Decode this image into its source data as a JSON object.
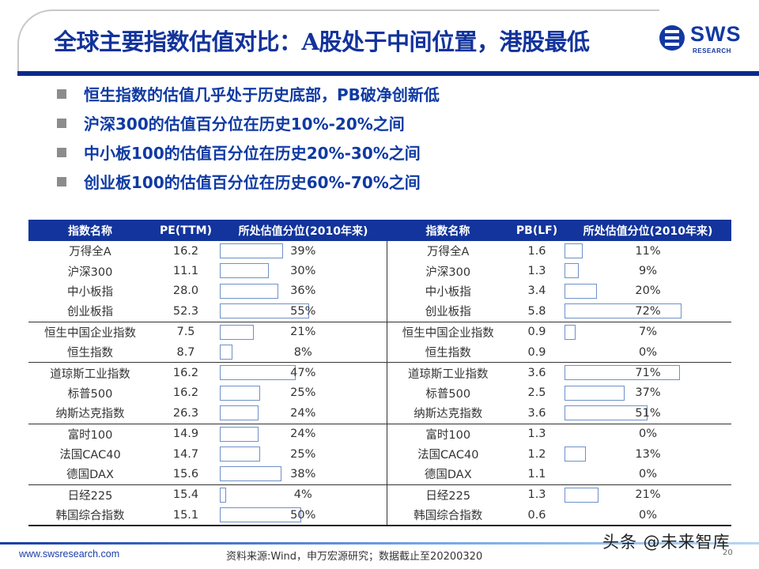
{
  "header": {
    "title": "全球主要指数估值对比：A股处于中间位置，港股最低",
    "logo_name": "SWS",
    "logo_sub": "RESEARCH"
  },
  "bullets": [
    "恒生指数的估值几乎处于历史底部，PB破净创新低",
    "沪深300的估值百分位在历史10%-20%之间",
    "中小板100的估值百分位在历史20%-30%之间",
    "创业板100的估值百分位在历史60%-70%之间"
  ],
  "table": {
    "headers": [
      "指数名称",
      "PE(TTM)",
      "所处估值分位(2010年来)",
      "指数名称",
      "PB(LF)",
      "所处估值分位(2010年来)"
    ],
    "rows": [
      {
        "name": "万得全A",
        "pe": "16.2",
        "pe_pct": "39%",
        "pe_frac": 0.39,
        "name2": "万得全A",
        "pb": "1.6",
        "pb_pct": "11%",
        "pb_frac": 0.11
      },
      {
        "name": "沪深300",
        "pe": "11.1",
        "pe_pct": "30%",
        "pe_frac": 0.3,
        "name2": "沪深300",
        "pb": "1.3",
        "pb_pct": "9%",
        "pb_frac": 0.09
      },
      {
        "name": "中小板指",
        "pe": "28.0",
        "pe_pct": "36%",
        "pe_frac": 0.36,
        "name2": "中小板指",
        "pb": "3.4",
        "pb_pct": "20%",
        "pb_frac": 0.2
      },
      {
        "name": "创业板指",
        "pe": "52.3",
        "pe_pct": "55%",
        "pe_frac": 0.55,
        "name2": "创业板指",
        "pb": "5.8",
        "pb_pct": "72%",
        "pb_frac": 0.72
      },
      {
        "name": "恒生中国企业指数",
        "pe": "7.5",
        "pe_pct": "21%",
        "pe_frac": 0.21,
        "name2": "恒生中国企业指数",
        "pb": "0.9",
        "pb_pct": "7%",
        "pb_frac": 0.07
      },
      {
        "name": "恒生指数",
        "pe": "8.7",
        "pe_pct": "8%",
        "pe_frac": 0.08,
        "name2": "恒生指数",
        "pb": "0.9",
        "pb_pct": "0%",
        "pb_frac": 0.0
      },
      {
        "name": "道琼斯工业指数",
        "pe": "16.2",
        "pe_pct": "47%",
        "pe_frac": 0.47,
        "name2": "道琼斯工业指数",
        "pb": "3.6",
        "pb_pct": "71%",
        "pb_frac": 0.71
      },
      {
        "name": "标普500",
        "pe": "16.2",
        "pe_pct": "25%",
        "pe_frac": 0.25,
        "name2": "标普500",
        "pb": "2.5",
        "pb_pct": "37%",
        "pb_frac": 0.37
      },
      {
        "name": "纳斯达克指数",
        "pe": "26.3",
        "pe_pct": "24%",
        "pe_frac": 0.24,
        "name2": "纳斯达克指数",
        "pb": "3.6",
        "pb_pct": "51%",
        "pb_frac": 0.51
      },
      {
        "name": "富时100",
        "pe": "14.9",
        "pe_pct": "24%",
        "pe_frac": 0.24,
        "name2": "富时100",
        "pb": "1.3",
        "pb_pct": "0%",
        "pb_frac": 0.0
      },
      {
        "name": "法国CAC40",
        "pe": "14.7",
        "pe_pct": "25%",
        "pe_frac": 0.25,
        "name2": "法国CAC40",
        "pb": "1.2",
        "pb_pct": "13%",
        "pb_frac": 0.13
      },
      {
        "name": "德国DAX",
        "pe": "15.6",
        "pe_pct": "38%",
        "pe_frac": 0.38,
        "name2": "德国DAX",
        "pb": "1.1",
        "pb_pct": "0%",
        "pb_frac": 0.0
      },
      {
        "name": "日经225",
        "pe": "15.4",
        "pe_pct": "4%",
        "pe_frac": 0.04,
        "name2": "日经225",
        "pb": "1.3",
        "pb_pct": "21%",
        "pb_frac": 0.21
      },
      {
        "name": "韩国综合指数",
        "pe": "15.1",
        "pe_pct": "50%",
        "pe_frac": 0.5,
        "name2": "韩国综合指数",
        "pb": "0.6",
        "pb_pct": "0%",
        "pb_frac": 0.0
      }
    ],
    "group_end_rows": [
      3,
      5,
      8,
      11,
      13
    ]
  },
  "footer": {
    "url": "www.swsresearch.com",
    "source": "资料来源:Wind，申万宏源研究；数据截止至20200320",
    "watermark": "头条 @未来智库",
    "page_number": "20"
  },
  "colors": {
    "title": "#12339b",
    "table_header_bg": "#12349c",
    "bar_border": "#6e90c8",
    "bullet_text": "#0f3aa3"
  }
}
